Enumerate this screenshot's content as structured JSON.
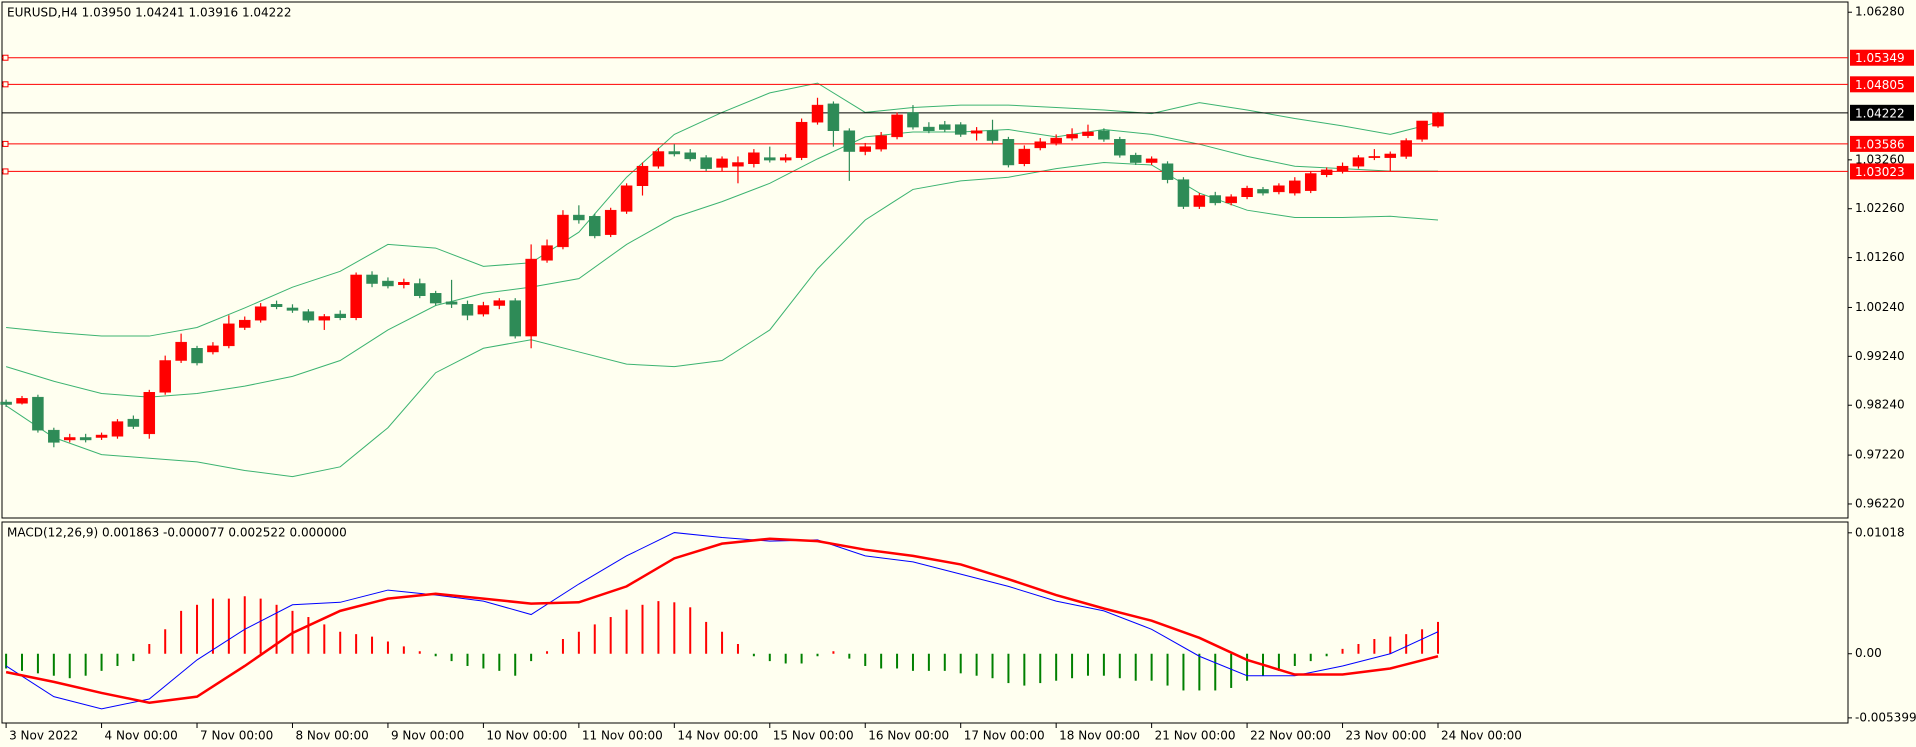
{
  "chart_data": [
    {
      "type": "candlestick",
      "title": "EURUSD,H4  1.03950 1.04241 1.03916 1.04222",
      "categories": [
        "3 Nov 2022",
        null,
        null,
        null,
        null,
        null,
        "4 Nov 00:00",
        null,
        null,
        null,
        null,
        null,
        "7 Nov 00:00",
        null,
        null,
        null,
        null,
        null,
        "8 Nov 00:00",
        null,
        null,
        null,
        null,
        null,
        "9 Nov 00:00",
        null,
        null,
        null,
        null,
        null,
        "10 Nov 00:00",
        null,
        null,
        null,
        null,
        null,
        "11 Nov 00:00",
        null,
        null,
        null,
        null,
        null,
        "14 Nov 00:00",
        null,
        null,
        null,
        null,
        null,
        "15 Nov 00:00",
        null,
        null,
        null,
        null,
        null,
        "16 Nov 00:00",
        null,
        null,
        null,
        null,
        null,
        "17 Nov 00:00",
        null,
        null,
        null,
        null,
        null,
        "18 Nov 00:00",
        null,
        null,
        null,
        null,
        null,
        "21 Nov 00:00",
        null,
        null,
        null,
        null,
        null,
        "22 Nov 00:00",
        null,
        null,
        null,
        null,
        null,
        "23 Nov 00:00",
        null,
        null,
        null,
        null,
        null,
        "24 Nov 00:00"
      ],
      "open": [
        0.98305,
        0.9828,
        0.98405,
        0.9773,
        0.9753,
        0.9758,
        0.9758,
        0.97605,
        0.97955,
        0.97655,
        0.98505,
        0.99155,
        0.99405,
        0.9933,
        0.99455,
        0.9983,
        0.9998,
        1.00305,
        1.0023,
        1.00155,
        0.9998,
        1.00105,
        1.0003,
        1.00905,
        1.0078,
        1.00705,
        1.0073,
        1.0053,
        1.00355,
        1.00305,
        1.00105,
        1.0028,
        1.0038,
        0.99655,
        1.01205,
        1.0148,
        1.0213,
        1.02105,
        1.0173,
        1.02205,
        1.0273,
        1.0313,
        1.0343,
        1.03405,
        1.03305,
        1.03105,
        1.0313,
        1.0318,
        1.03305,
        1.03255,
        1.03305,
        1.0403,
        1.04405,
        1.03855,
        1.0343,
        1.0348,
        1.0373,
        1.0423,
        1.0393,
        1.0398,
        1.0398,
        1.03805,
        1.03855,
        1.0368,
        1.0318,
        1.03505,
        1.03605,
        1.03705,
        1.03755,
        1.03855,
        1.0368,
        1.03355,
        1.03205,
        1.0318,
        1.02855,
        1.02305,
        1.0253,
        1.0238,
        1.02505,
        1.02655,
        1.02605,
        1.0258,
        1.0263,
        1.02955,
        1.0303,
        1.0313,
        1.03305,
        1.03305,
        1.0333,
        1.0368,
        1.0395
      ],
      "high": [
        0.98355,
        0.9843,
        0.98455,
        0.9778,
        0.97655,
        0.97655,
        0.9768,
        0.97955,
        0.9803,
        0.98555,
        0.99255,
        0.99705,
        0.99455,
        0.9953,
        1.0008,
        1.00055,
        1.0033,
        1.0038,
        1.00305,
        1.00205,
        1.00105,
        1.0018,
        1.00955,
        1.0098,
        1.00855,
        1.0083,
        1.0083,
        1.0058,
        1.00805,
        1.0038,
        1.00355,
        1.0043,
        1.0043,
        1.0153,
        1.0163,
        1.0223,
        1.0233,
        1.02155,
        1.0228,
        1.0278,
        1.03205,
        1.03505,
        1.0358,
        1.0348,
        1.03355,
        1.0333,
        1.0333,
        1.0348,
        1.0353,
        1.0338,
        1.04105,
        1.0453,
        1.04455,
        1.03905,
        1.03605,
        1.0383,
        1.0423,
        1.0438,
        1.0403,
        1.04055,
        1.0403,
        1.0393,
        1.0408,
        1.0373,
        1.03555,
        1.03705,
        1.0378,
        1.03905,
        1.0398,
        1.03905,
        1.0373,
        1.03405,
        1.0333,
        1.0323,
        1.02905,
        1.0258,
        1.02605,
        1.02555,
        1.0273,
        1.02705,
        1.0278,
        1.02905,
        1.0303,
        1.03105,
        1.03205,
        1.03355,
        1.0348,
        1.0343,
        1.037,
        1.0403,
        1.04241
      ],
      "low": [
        0.98205,
        0.98255,
        0.9768,
        0.9738,
        0.9748,
        0.9748,
        0.9753,
        0.97555,
        0.97755,
        0.97555,
        0.98455,
        0.99105,
        0.99055,
        0.9928,
        0.99405,
        0.9978,
        0.9993,
        1.00205,
        1.0013,
        0.9993,
        0.9978,
        0.9998,
        0.9998,
        1.00655,
        1.0063,
        1.0063,
        1.0043,
        1.0028,
        1.0023,
        0.9998,
        1.00055,
        1.00205,
        0.99605,
        0.99405,
        1.01155,
        1.0143,
        1.01955,
        1.01655,
        1.0168,
        1.02155,
        1.0253,
        1.0308,
        1.0333,
        1.0323,
        1.0303,
        1.0303,
        1.0278,
        1.03105,
        1.03205,
        1.03205,
        1.03255,
        1.0398,
        1.0353,
        1.0283,
        1.03355,
        1.0343,
        1.0368,
        1.0388,
        1.03805,
        1.0383,
        1.0373,
        1.03655,
        1.0358,
        1.03105,
        1.0313,
        1.03455,
        1.03555,
        1.03655,
        1.03705,
        1.0363,
        1.03305,
        1.03155,
        1.03155,
        1.0278,
        1.02255,
        1.02255,
        1.0233,
        1.0233,
        1.02455,
        1.0253,
        1.02555,
        1.0253,
        1.0258,
        1.02905,
        1.0298,
        1.0308,
        1.03255,
        1.0303,
        1.0328,
        1.0363,
        1.03916
      ],
      "close": [
        0.98255,
        0.9838,
        0.9773,
        0.9748,
        0.9758,
        0.9753,
        0.9763,
        0.97905,
        0.97805,
        0.98505,
        0.99155,
        0.9953,
        0.99105,
        0.99455,
        0.99905,
        0.9998,
        1.00255,
        1.00255,
        1.0018,
        0.9998,
        1.00055,
        1.0003,
        1.00905,
        1.0073,
        1.0068,
        1.00755,
        1.0048,
        1.0033,
        1.00305,
        1.0008,
        1.0028,
        1.0038,
        0.99655,
        1.0123,
        1.01505,
        1.0213,
        1.0203,
        1.01705,
        1.0223,
        1.0273,
        1.0313,
        1.0343,
        1.0338,
        1.0328,
        1.0308,
        1.0328,
        1.03205,
        1.03405,
        1.03255,
        1.03305,
        1.0403,
        1.0438,
        1.03855,
        1.0343,
        1.0353,
        1.03755,
        1.0418,
        1.0393,
        1.03855,
        1.0388,
        1.0378,
        1.03855,
        1.03655,
        1.03155,
        1.0348,
        1.0363,
        1.03705,
        1.0378,
        1.0383,
        1.0368,
        1.03355,
        1.03205,
        1.0328,
        1.02855,
        1.02305,
        1.0253,
        1.0238,
        1.02505,
        1.0268,
        1.0258,
        1.0273,
        1.0283,
        1.0298,
        1.03055,
        1.0313,
        1.03305,
        1.0333,
        1.0338,
        1.03655,
        1.04055,
        1.04222
      ],
      "colors": {
        "up": "#ff0000",
        "down": "#2e8b57"
      },
      "bands": {
        "color": "#3cb371",
        "x": [
          0,
          3,
          6,
          9,
          12,
          15,
          18,
          21,
          24,
          27,
          30,
          33,
          36,
          39,
          42,
          45,
          48,
          51,
          54,
          57,
          60,
          63,
          66,
          69,
          72,
          75,
          78,
          81,
          84,
          87,
          90
        ],
        "upper": [
          0.9983,
          0.9973,
          0.99655,
          0.99655,
          0.9983,
          1.0023,
          1.00655,
          1.0098,
          1.0153,
          1.01455,
          1.0108,
          1.01155,
          1.0178,
          1.02905,
          1.0378,
          1.0423,
          1.0463,
          1.0483,
          1.0423,
          1.0433,
          1.0438,
          1.0438,
          1.0433,
          1.0428,
          1.04205,
          1.0443,
          1.0428,
          1.04105,
          1.03955,
          1.0378,
          1.0403
        ],
        "middle": [
          0.9903,
          0.9873,
          0.9848,
          0.98405,
          0.9848,
          0.9863,
          0.9883,
          0.99155,
          0.9978,
          1.0028,
          1.0053,
          1.00655,
          1.0083,
          1.0153,
          1.0208,
          1.02405,
          1.0278,
          1.0328,
          1.0373,
          1.0383,
          1.0383,
          1.0388,
          1.0373,
          1.0388,
          1.0378,
          1.0358,
          1.0333,
          1.0313,
          1.0308,
          1.0303,
          1.0303
        ],
        "lower": [
          0.9823,
          0.9758,
          0.9723,
          0.97155,
          0.9708,
          0.96905,
          0.9678,
          0.9698,
          0.9778,
          0.98905,
          0.99405,
          0.9958,
          0.9933,
          0.9908,
          0.9903,
          0.99155,
          0.9978,
          1.0103,
          1.0203,
          1.02655,
          1.0283,
          1.02905,
          1.0308,
          1.03205,
          1.03155,
          1.0258,
          1.0223,
          1.0208,
          1.0208,
          1.02105,
          1.0203
        ]
      },
      "levels": [
        {
          "value": 1.05349,
          "color": "#ff0000"
        },
        {
          "value": 1.04805,
          "color": "#ff0000"
        },
        {
          "value": 1.04222,
          "color": "#000000"
        },
        {
          "value": 1.03586,
          "color": "#ff0000"
        },
        {
          "value": 1.03023,
          "color": "#ff0000"
        }
      ],
      "ylim": [
        0.95933,
        1.06489
      ],
      "yticks": [
        {
          "value": 1.0628,
          "label": "1.06280"
        },
        {
          "value": 1.0326,
          "label": "1.03260"
        },
        {
          "value": 1.0226,
          "label": "1.02260"
        },
        {
          "value": 1.0126,
          "label": "1.01260"
        },
        {
          "value": 1.0024,
          "label": "1.00240"
        },
        {
          "value": 0.9924,
          "label": "0.99240"
        },
        {
          "value": 0.9824,
          "label": "0.98240"
        },
        {
          "value": 0.9722,
          "label": "0.97220"
        },
        {
          "value": 0.9622,
          "label": "0.96220"
        }
      ]
    },
    {
      "type": "macd",
      "title": "MACD(12,26,9) 0.001863 -0.000077 0.002522 0.000000",
      "histogram": [
        -0.00124,
        -0.00144,
        -0.00165,
        -0.00185,
        -0.00206,
        -0.00185,
        -0.00144,
        -0.00103,
        -0.00062,
        0.00082,
        0.00206,
        0.00361,
        0.00412,
        0.00464,
        0.00464,
        0.00484,
        0.00464,
        0.00412,
        0.00361,
        0.00309,
        0.00247,
        0.00185,
        0.00165,
        0.00144,
        0.00103,
        0.00062,
        0.00021,
        -0.00021,
        -0.00062,
        -0.00103,
        -0.00124,
        -0.00144,
        -0.00185,
        -0.00062,
        0.00021,
        0.00124,
        0.00185,
        0.00247,
        0.00309,
        0.00371,
        0.00412,
        0.00443,
        0.00433,
        0.00391,
        0.00268,
        0.00185,
        0.00082,
        -0.00021,
        -0.00062,
        -0.00082,
        -0.00082,
        -0.00021,
        0.00021,
        -0.00041,
        -0.00103,
        -0.00124,
        -0.00124,
        -0.00144,
        -0.00144,
        -0.00144,
        -0.00165,
        -0.00185,
        -0.00206,
        -0.00247,
        -0.00268,
        -0.00247,
        -0.00227,
        -0.00206,
        -0.00185,
        -0.00185,
        -0.00206,
        -0.00227,
        -0.00227,
        -0.00268,
        -0.00309,
        -0.00309,
        -0.00309,
        -0.00288,
        -0.00227,
        -0.00185,
        -0.00144,
        -0.00103,
        -0.00062,
        -0.00021,
        0.00041,
        0.00082,
        0.00124,
        0.00144,
        0.00165,
        0.00206,
        0.00268
      ],
      "histogram_colors": {
        "positive": "#ff0000",
        "negative": "#008000"
      },
      "series": [
        {
          "color": "#0000ff",
          "width": 1,
          "x": [
            0,
            3,
            6,
            9,
            12,
            15,
            18,
            21,
            24,
            27,
            30,
            33,
            36,
            39,
            42,
            45,
            48,
            51,
            54,
            57,
            60,
            63,
            66,
            69,
            72,
            75,
            78,
            81,
            84,
            87,
            90
          ],
          "values": [
            -0.00103,
            -0.00361,
            -0.00464,
            -0.00381,
            -0.00052,
            0.00206,
            0.00412,
            0.00433,
            0.00536,
            0.00494,
            0.00443,
            0.0033,
            0.00587,
            0.00824,
            0.0102,
            0.00979,
            0.00948,
            0.00958,
            0.00824,
            0.00773,
            0.0067,
            0.00567,
            0.00443,
            0.00361,
            0.00206,
            -0.00021,
            -0.00185,
            -0.00185,
            -0.00103,
            0,
            0.00185
          ]
        },
        {
          "color": "#ff0000",
          "width": 2.5,
          "x": [
            0,
            3,
            6,
            9,
            12,
            15,
            18,
            21,
            24,
            27,
            30,
            33,
            36,
            39,
            42,
            45,
            48,
            51,
            54,
            57,
            60,
            63,
            66,
            69,
            72,
            75,
            78,
            81,
            84,
            87,
            90
          ],
          "values": [
            -0.00155,
            -0.00237,
            -0.0033,
            -0.00412,
            -0.00361,
            -0.00103,
            0.00175,
            0.00361,
            0.00464,
            0.00505,
            0.00464,
            0.00422,
            0.00433,
            0.00567,
            0.00803,
            0.00927,
            0.00968,
            0.00948,
            0.00876,
            0.00824,
            0.00752,
            0.00628,
            0.00494,
            0.00381,
            0.00278,
            0.00134,
            -0.00052,
            -0.00175,
            -0.00175,
            -0.00124,
            -0.00021
          ]
        }
      ],
      "ylim": [
        -0.00583,
        0.01109
      ],
      "yticks": [
        0.01018,
        {
          "value": 0,
          "label": "0.00"
        },
        -0.005399
      ]
    }
  ]
}
